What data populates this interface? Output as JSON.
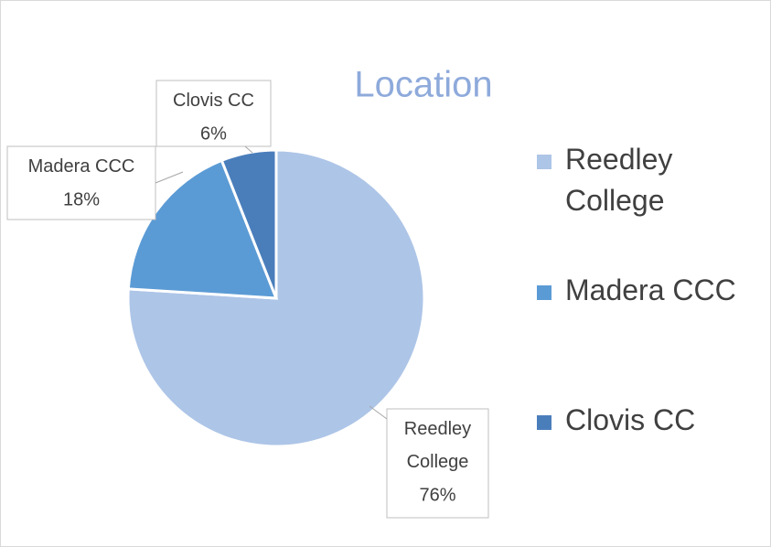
{
  "chart_data": {
    "type": "pie",
    "title": "Location",
    "categories": [
      "Reedley College",
      "Madera CCC",
      "Clovis CC"
    ],
    "values": [
      76,
      18,
      6
    ],
    "value_labels": [
      "76%",
      "18%",
      "6%"
    ],
    "colors": [
      "#adc5e7",
      "#5b9bd5",
      "#4a7ebb"
    ],
    "legend": "right"
  }
}
